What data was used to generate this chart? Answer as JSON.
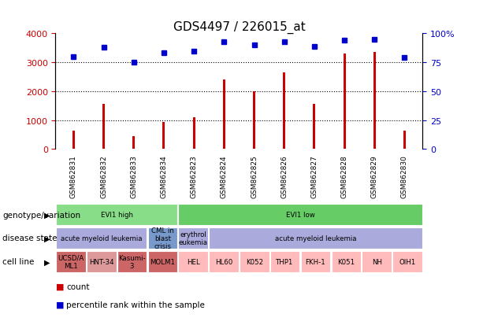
{
  "title": "GDS4497 / 226015_at",
  "samples": [
    "GSM862831",
    "GSM862832",
    "GSM862833",
    "GSM862834",
    "GSM862823",
    "GSM862824",
    "GSM862825",
    "GSM862826",
    "GSM862827",
    "GSM862828",
    "GSM862829",
    "GSM862830"
  ],
  "counts": [
    650,
    1550,
    450,
    950,
    1100,
    2400,
    2000,
    2650,
    1550,
    3300,
    3350,
    650
  ],
  "percentiles": [
    80,
    88,
    75,
    83,
    85,
    93,
    90,
    93,
    89,
    94,
    95,
    79
  ],
  "ylim_left": [
    0,
    4000
  ],
  "ylim_right": [
    0,
    100
  ],
  "yticks_left": [
    0,
    1000,
    2000,
    3000,
    4000
  ],
  "yticks_right": [
    0,
    25,
    50,
    75,
    100
  ],
  "bar_color": "#cc0000",
  "dot_color": "#0000cc",
  "background_color": "#ffffff",
  "plot_bg_color": "#ffffff",
  "xtick_bg_color": "#cccccc",
  "genotype_row": {
    "label": "genotype/variation",
    "groups": [
      {
        "text": "EVI1 high",
        "start": 0,
        "end": 4,
        "color": "#88dd88"
      },
      {
        "text": "EVI1 low",
        "start": 4,
        "end": 12,
        "color": "#66cc66"
      }
    ]
  },
  "disease_row": {
    "label": "disease state",
    "groups": [
      {
        "text": "acute myeloid leukemia",
        "start": 0,
        "end": 3,
        "color": "#aaaadd"
      },
      {
        "text": "CML in\nblast\ncrisis",
        "start": 3,
        "end": 4,
        "color": "#7799cc"
      },
      {
        "text": "erythrol\neukemia",
        "start": 4,
        "end": 5,
        "color": "#aaaadd"
      },
      {
        "text": "acute myeloid leukemia",
        "start": 5,
        "end": 12,
        "color": "#aaaadd"
      }
    ]
  },
  "cell_row": {
    "label": "cell line",
    "groups": [
      {
        "text": "UCSD/A\nML1",
        "start": 0,
        "end": 1,
        "color": "#cc6666"
      },
      {
        "text": "HNT-34",
        "start": 1,
        "end": 2,
        "color": "#dd9999"
      },
      {
        "text": "Kasumi-\n3",
        "start": 2,
        "end": 3,
        "color": "#cc6666"
      },
      {
        "text": "MOLM1",
        "start": 3,
        "end": 4,
        "color": "#cc6666"
      },
      {
        "text": "HEL",
        "start": 4,
        "end": 5,
        "color": "#ffbbbb"
      },
      {
        "text": "HL60",
        "start": 5,
        "end": 6,
        "color": "#ffbbbb"
      },
      {
        "text": "K052",
        "start": 6,
        "end": 7,
        "color": "#ffbbbb"
      },
      {
        "text": "THP1",
        "start": 7,
        "end": 8,
        "color": "#ffbbbb"
      },
      {
        "text": "FKH-1",
        "start": 8,
        "end": 9,
        "color": "#ffbbbb"
      },
      {
        "text": "K051",
        "start": 9,
        "end": 10,
        "color": "#ffbbbb"
      },
      {
        "text": "NH",
        "start": 10,
        "end": 11,
        "color": "#ffbbbb"
      },
      {
        "text": "OIH1",
        "start": 11,
        "end": 12,
        "color": "#ffbbbb"
      }
    ]
  },
  "dotted_line_color": "#000000",
  "left_axis_color": "#cc0000",
  "right_axis_color": "#0000cc",
  "legend_count_color": "#cc0000",
  "legend_dot_color": "#0000cc"
}
